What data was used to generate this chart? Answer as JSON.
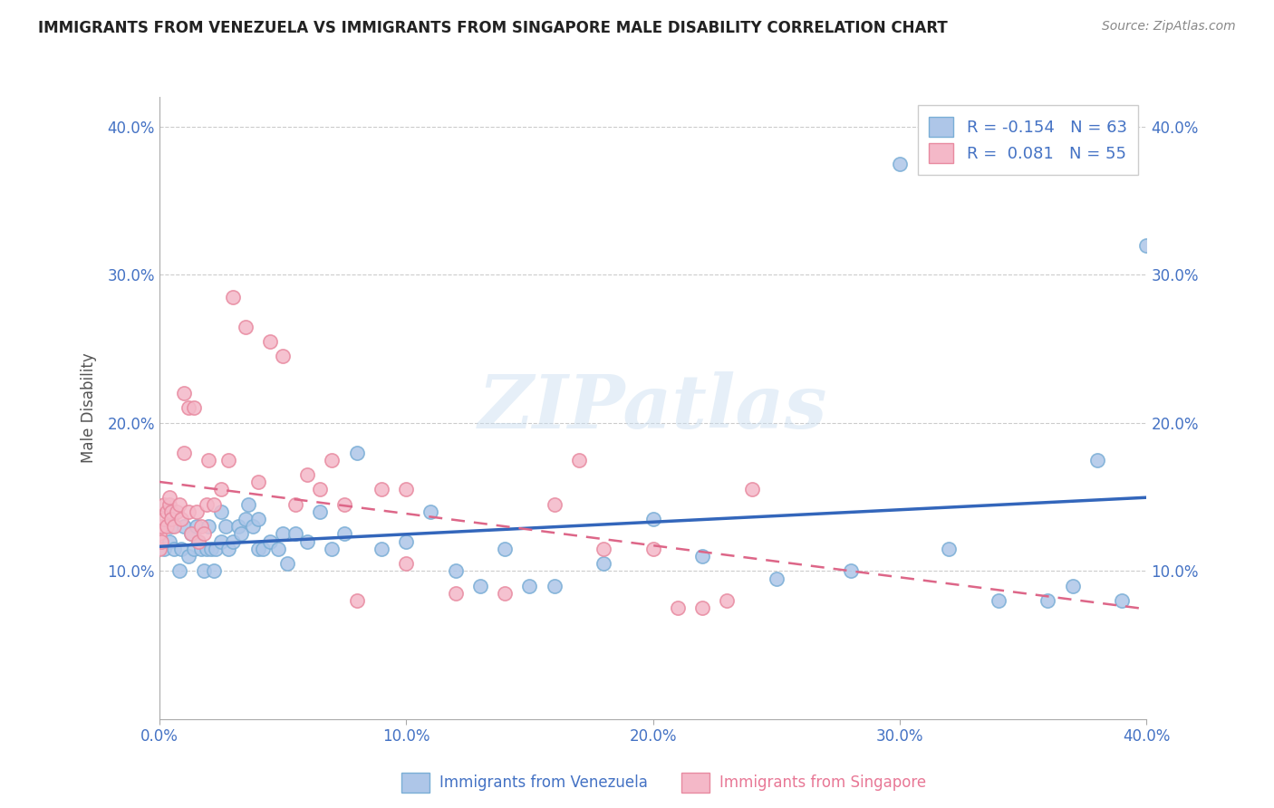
{
  "title": "IMMIGRANTS FROM VENEZUELA VS IMMIGRANTS FROM SINGAPORE MALE DISABILITY CORRELATION CHART",
  "source": "Source: ZipAtlas.com",
  "xlabel": "",
  "ylabel": "Male Disability",
  "xlim": [
    0.0,
    0.4
  ],
  "ylim": [
    0.0,
    0.42
  ],
  "xticks": [
    0.0,
    0.1,
    0.2,
    0.3,
    0.4
  ],
  "yticks": [
    0.1,
    0.2,
    0.3,
    0.4
  ],
  "xtick_labels": [
    "0.0%",
    "10.0%",
    "20.0%",
    "30.0%",
    "40.0%"
  ],
  "ytick_labels": [
    "10.0%",
    "20.0%",
    "30.0%",
    "40.0%"
  ],
  "legend_label1": "Immigrants from Venezuela",
  "legend_label2": "Immigrants from Singapore",
  "R1": -0.154,
  "N1": 63,
  "R2": 0.081,
  "N2": 55,
  "color1": "#aec6e8",
  "color2": "#f4b8c8",
  "scatter_color1": "#7aaed6",
  "scatter_color2": "#e88aa0",
  "trend_color1": "#3366bb",
  "trend_color2": "#dd6688",
  "watermark": "ZIPatlas",
  "venezuela_x": [
    0.002,
    0.004,
    0.005,
    0.006,
    0.008,
    0.009,
    0.01,
    0.012,
    0.013,
    0.014,
    0.015,
    0.016,
    0.017,
    0.018,
    0.019,
    0.02,
    0.021,
    0.022,
    0.023,
    0.025,
    0.025,
    0.027,
    0.028,
    0.03,
    0.032,
    0.033,
    0.035,
    0.036,
    0.038,
    0.04,
    0.04,
    0.042,
    0.045,
    0.048,
    0.05,
    0.052,
    0.055,
    0.06,
    0.065,
    0.07,
    0.075,
    0.08,
    0.09,
    0.1,
    0.11,
    0.12,
    0.13,
    0.14,
    0.15,
    0.16,
    0.18,
    0.2,
    0.22,
    0.25,
    0.28,
    0.3,
    0.32,
    0.34,
    0.36,
    0.37,
    0.38,
    0.39,
    0.4
  ],
  "venezuela_y": [
    0.115,
    0.12,
    0.13,
    0.115,
    0.1,
    0.115,
    0.13,
    0.11,
    0.125,
    0.115,
    0.13,
    0.12,
    0.115,
    0.1,
    0.115,
    0.13,
    0.115,
    0.1,
    0.115,
    0.14,
    0.12,
    0.13,
    0.115,
    0.12,
    0.13,
    0.125,
    0.135,
    0.145,
    0.13,
    0.115,
    0.135,
    0.115,
    0.12,
    0.115,
    0.125,
    0.105,
    0.125,
    0.12,
    0.14,
    0.115,
    0.125,
    0.18,
    0.115,
    0.12,
    0.14,
    0.1,
    0.09,
    0.115,
    0.09,
    0.09,
    0.105,
    0.135,
    0.11,
    0.095,
    0.1,
    0.375,
    0.115,
    0.08,
    0.08,
    0.09,
    0.175,
    0.08,
    0.32
  ],
  "singapore_x": [
    0.0,
    0.0,
    0.001,
    0.001,
    0.002,
    0.002,
    0.003,
    0.003,
    0.004,
    0.004,
    0.005,
    0.005,
    0.006,
    0.007,
    0.008,
    0.009,
    0.01,
    0.01,
    0.012,
    0.012,
    0.013,
    0.014,
    0.015,
    0.016,
    0.017,
    0.018,
    0.019,
    0.02,
    0.022,
    0.025,
    0.028,
    0.03,
    0.035,
    0.04,
    0.045,
    0.05,
    0.055,
    0.06,
    0.065,
    0.07,
    0.075,
    0.08,
    0.09,
    0.1,
    0.1,
    0.12,
    0.14,
    0.16,
    0.17,
    0.18,
    0.2,
    0.21,
    0.22,
    0.23,
    0.24
  ],
  "singapore_y": [
    0.115,
    0.125,
    0.12,
    0.13,
    0.135,
    0.145,
    0.13,
    0.14,
    0.145,
    0.15,
    0.14,
    0.135,
    0.13,
    0.14,
    0.145,
    0.135,
    0.18,
    0.22,
    0.14,
    0.21,
    0.125,
    0.21,
    0.14,
    0.12,
    0.13,
    0.125,
    0.145,
    0.175,
    0.145,
    0.155,
    0.175,
    0.285,
    0.265,
    0.16,
    0.255,
    0.245,
    0.145,
    0.165,
    0.155,
    0.175,
    0.145,
    0.08,
    0.155,
    0.155,
    0.105,
    0.085,
    0.085,
    0.145,
    0.175,
    0.115,
    0.115,
    0.075,
    0.075,
    0.08,
    0.155
  ]
}
